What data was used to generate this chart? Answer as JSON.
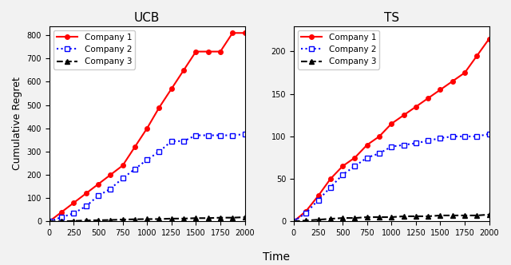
{
  "title_left": "UCB",
  "title_right": "TS",
  "xlabel": "Time",
  "ylabel": "Cumulative Regret",
  "x_ticks": [
    0,
    250,
    500,
    750,
    1000,
    1250,
    1500,
    1750,
    2000
  ],
  "x_max": 2000,
  "ucb": {
    "company1": {
      "x": [
        0,
        125,
        250,
        375,
        500,
        625,
        750,
        875,
        1000,
        1125,
        1250,
        1375,
        1500,
        1625,
        1750,
        1875,
        2000
      ],
      "y": [
        0,
        40,
        80,
        120,
        160,
        200,
        240,
        320,
        400,
        490,
        570,
        650,
        730,
        730,
        730,
        810,
        810
      ],
      "color": "#ff0000",
      "linestyle": "-",
      "marker": "o",
      "label": "Company 1"
    },
    "company2": {
      "x": [
        0,
        125,
        250,
        375,
        500,
        625,
        750,
        875,
        1000,
        1125,
        1250,
        1375,
        1500,
        1625,
        1750,
        1875,
        2000
      ],
      "y": [
        0,
        18,
        35,
        65,
        110,
        140,
        185,
        225,
        265,
        300,
        345,
        345,
        370,
        370,
        370,
        370,
        375
      ],
      "color": "#0000ff",
      "linestyle": ":",
      "marker": "s",
      "label": "Company 2"
    },
    "company3": {
      "x": [
        0,
        125,
        250,
        375,
        500,
        625,
        750,
        875,
        1000,
        1125,
        1250,
        1375,
        1500,
        1625,
        1750,
        1875,
        2000
      ],
      "y": [
        0,
        0,
        2,
        4,
        5,
        6,
        8,
        9,
        10,
        10,
        12,
        12,
        14,
        14,
        16,
        16,
        18
      ],
      "color": "#000000",
      "linestyle": "--",
      "marker": "^",
      "label": "Company 3"
    }
  },
  "ts": {
    "company1": {
      "x": [
        0,
        125,
        250,
        375,
        500,
        625,
        750,
        875,
        1000,
        1125,
        1250,
        1375,
        1500,
        1625,
        1750,
        1875,
        2000
      ],
      "y": [
        0,
        12,
        30,
        50,
        65,
        75,
        90,
        100,
        115,
        125,
        135,
        145,
        155,
        165,
        175,
        195,
        215
      ],
      "color": "#ff0000",
      "linestyle": "-",
      "marker": "o",
      "label": "Company 1"
    },
    "company2": {
      "x": [
        0,
        125,
        250,
        375,
        500,
        625,
        750,
        875,
        1000,
        1125,
        1250,
        1375,
        1500,
        1625,
        1750,
        1875,
        2000
      ],
      "y": [
        0,
        10,
        25,
        40,
        55,
        65,
        75,
        80,
        88,
        90,
        92,
        95,
        98,
        100,
        100,
        100,
        103
      ],
      "color": "#0000ff",
      "linestyle": ":",
      "marker": "s",
      "label": "Company 2"
    },
    "company3": {
      "x": [
        0,
        125,
        250,
        375,
        500,
        625,
        750,
        875,
        1000,
        1125,
        1250,
        1375,
        1500,
        1625,
        1750,
        1875,
        2000
      ],
      "y": [
        0,
        1,
        2,
        3,
        4,
        4,
        5,
        5,
        5,
        6,
        6,
        6,
        7,
        7,
        7,
        7,
        8
      ],
      "color": "#000000",
      "linestyle": "--",
      "marker": "^",
      "label": "Company 3"
    }
  },
  "ucb_ylim": [
    0,
    840
  ],
  "ts_ylim": [
    0,
    230
  ],
  "ucb_yticks": [
    0,
    100,
    200,
    300,
    400,
    500,
    600,
    700,
    800
  ],
  "ts_yticks": [
    0,
    50,
    100,
    150,
    200
  ],
  "figure_bg": "#f2f2f2",
  "axes_bg": "#ffffff"
}
